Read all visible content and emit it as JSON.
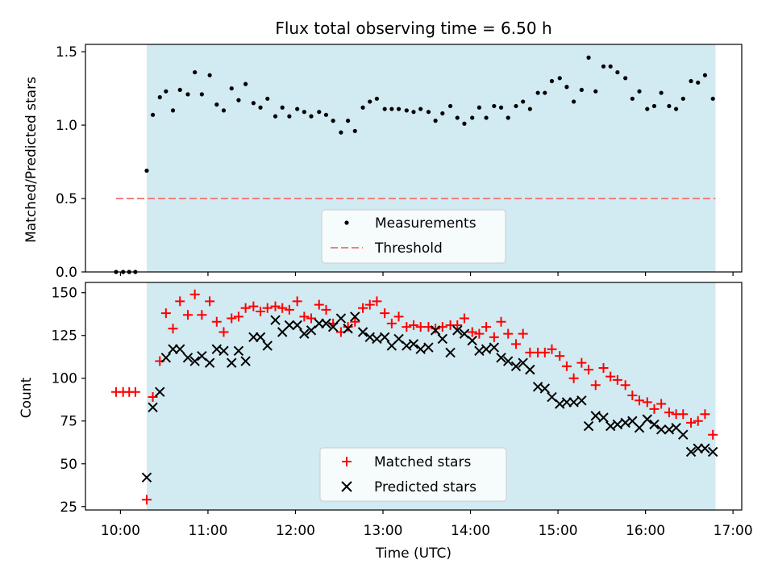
{
  "chart_data": {
    "type": "scatter",
    "title": "Flux total observing time = 6.50 h",
    "x_label": "Time (UTC)",
    "x_range_hours": [
      9.6,
      17.1
    ],
    "x_ticks": [
      {
        "value": 10,
        "label": "10:00"
      },
      {
        "value": 11,
        "label": "11:00"
      },
      {
        "value": 12,
        "label": "12:00"
      },
      {
        "value": 13,
        "label": "13:00"
      },
      {
        "value": 14,
        "label": "14:00"
      },
      {
        "value": 15,
        "label": "15:00"
      },
      {
        "value": 16,
        "label": "16:00"
      },
      {
        "value": 17,
        "label": "17:00"
      }
    ],
    "colors": {
      "observing_span": "#add8e6",
      "measurements": "#000000",
      "threshold": "#f08080",
      "matched": "#ff0000",
      "predicted": "#000000"
    },
    "panels": [
      {
        "id": "ratio",
        "y_label": "Matched/Predicted stars",
        "y_range": [
          0,
          1.55
        ],
        "y_ticks": [
          {
            "value": 0,
            "label": "0.0"
          },
          {
            "value": 0.5,
            "label": "0.5"
          },
          {
            "value": 1,
            "label": "1.0"
          },
          {
            "value": 1.5,
            "label": "1.5"
          }
        ],
        "observing_span_hours": [
          10.3,
          16.8
        ],
        "threshold": {
          "name": "Threshold",
          "value": 0.5,
          "x_range": [
            9.95,
            16.8
          ]
        },
        "legend": {
          "placement": "lower-center",
          "entries": [
            "Measurements",
            "Threshold"
          ]
        },
        "series": [
          {
            "name": "Measurements",
            "marker": "dot",
            "x": [
              9.95,
              10.03,
              10.1,
              10.17,
              10.3,
              10.37,
              10.45,
              10.52,
              10.6,
              10.68,
              10.77,
              10.85,
              10.93,
              11.02,
              11.1,
              11.18,
              11.27,
              11.35,
              11.43,
              11.52,
              11.6,
              11.68,
              11.77,
              11.85,
              11.93,
              12.02,
              12.1,
              12.18,
              12.27,
              12.35,
              12.43,
              12.52,
              12.6,
              12.68,
              12.77,
              12.85,
              12.93,
              13.02,
              13.1,
              13.18,
              13.27,
              13.35,
              13.43,
              13.52,
              13.6,
              13.68,
              13.77,
              13.85,
              13.93,
              14.02,
              14.1,
              14.18,
              14.27,
              14.35,
              14.43,
              14.52,
              14.6,
              14.68,
              14.77,
              14.85,
              14.93,
              15.02,
              15.1,
              15.18,
              15.27,
              15.35,
              15.43,
              15.52,
              15.6,
              15.68,
              15.77,
              15.85,
              15.93,
              16.02,
              16.1,
              16.18,
              16.27,
              16.35,
              16.43,
              16.52,
              16.6,
              16.68,
              16.77
            ],
            "y": [
              0.0,
              0.0,
              0.0,
              0.0,
              0.69,
              1.07,
              1.19,
              1.23,
              1.1,
              1.24,
              1.21,
              1.36,
              1.21,
              1.34,
              1.14,
              1.1,
              1.25,
              1.17,
              1.28,
              1.15,
              1.12,
              1.18,
              1.06,
              1.12,
              1.06,
              1.11,
              1.09,
              1.06,
              1.09,
              1.07,
              1.03,
              0.95,
              1.03,
              0.96,
              1.12,
              1.16,
              1.18,
              1.11,
              1.11,
              1.11,
              1.1,
              1.09,
              1.11,
              1.09,
              1.03,
              1.08,
              1.13,
              1.05,
              1.01,
              1.05,
              1.12,
              1.05,
              1.13,
              1.12,
              1.05,
              1.13,
              1.16,
              1.11,
              1.22,
              1.22,
              1.3,
              1.32,
              1.26,
              1.16,
              1.24,
              1.46,
              1.23,
              1.4,
              1.4,
              1.36,
              1.32,
              1.18,
              1.23,
              1.11,
              1.13,
              1.22,
              1.13,
              1.11,
              1.18,
              1.3,
              1.29,
              1.34,
              1.18
            ]
          }
        ]
      },
      {
        "id": "counts",
        "y_label": "Count",
        "y_range": [
          23,
          156
        ],
        "y_ticks": [
          {
            "value": 25,
            "label": "25"
          },
          {
            "value": 50,
            "label": "50"
          },
          {
            "value": 75,
            "label": "75"
          },
          {
            "value": 100,
            "label": "100"
          },
          {
            "value": 125,
            "label": "125"
          },
          {
            "value": 150,
            "label": "150"
          }
        ],
        "observing_span_hours": [
          10.3,
          16.8
        ],
        "legend": {
          "placement": "lower-center",
          "entries": [
            "Matched stars",
            "Predicted stars"
          ]
        },
        "series": [
          {
            "name": "Matched stars",
            "marker": "plus",
            "x": [
              9.95,
              10.03,
              10.1,
              10.17,
              10.3,
              10.37,
              10.45,
              10.52,
              10.6,
              10.68,
              10.77,
              10.85,
              10.93,
              11.02,
              11.1,
              11.18,
              11.27,
              11.35,
              11.43,
              11.52,
              11.6,
              11.68,
              11.77,
              11.85,
              11.93,
              12.02,
              12.1,
              12.18,
              12.27,
              12.35,
              12.43,
              12.52,
              12.6,
              12.68,
              12.77,
              12.85,
              12.93,
              13.02,
              13.1,
              13.18,
              13.27,
              13.35,
              13.43,
              13.52,
              13.6,
              13.68,
              13.77,
              13.85,
              13.93,
              14.02,
              14.1,
              14.18,
              14.27,
              14.35,
              14.43,
              14.52,
              14.6,
              14.68,
              14.77,
              14.85,
              14.93,
              15.02,
              15.1,
              15.18,
              15.27,
              15.35,
              15.43,
              15.52,
              15.6,
              15.68,
              15.77,
              15.85,
              15.93,
              16.02,
              16.1,
              16.18,
              16.27,
              16.35,
              16.43,
              16.52,
              16.6,
              16.68,
              16.77
            ],
            "y": [
              92,
              92,
              92,
              92,
              29,
              89,
              110,
              138,
              129,
              145,
              137,
              149,
              137,
              145,
              133,
              127,
              135,
              136,
              141,
              142,
              139,
              141,
              142,
              141,
              140,
              145,
              136,
              135,
              143,
              140,
              132,
              127,
              130,
              133,
              141,
              143,
              145,
              138,
              132,
              136,
              130,
              131,
              130,
              130,
              129,
              130,
              131,
              131,
              135,
              127,
              126,
              130,
              124,
              133,
              126,
              120,
              126,
              115,
              115,
              115,
              117,
              113,
              107,
              100,
              109,
              105,
              96,
              106,
              101,
              99,
              96,
              90,
              87,
              86,
              82,
              85,
              80,
              79,
              79,
              74,
              75,
              79,
              67
            ]
          },
          {
            "name": "Predicted stars",
            "marker": "x",
            "x": [
              10.3,
              10.37,
              10.45,
              10.52,
              10.6,
              10.68,
              10.77,
              10.85,
              10.93,
              11.02,
              11.1,
              11.18,
              11.27,
              11.35,
              11.43,
              11.52,
              11.6,
              11.68,
              11.77,
              11.85,
              11.93,
              12.02,
              12.1,
              12.18,
              12.27,
              12.35,
              12.43,
              12.52,
              12.6,
              12.68,
              12.77,
              12.85,
              12.93,
              13.02,
              13.1,
              13.18,
              13.27,
              13.35,
              13.43,
              13.52,
              13.6,
              13.68,
              13.77,
              13.85,
              13.93,
              14.02,
              14.1,
              14.18,
              14.27,
              14.35,
              14.43,
              14.52,
              14.6,
              14.68,
              14.77,
              14.85,
              14.93,
              15.02,
              15.1,
              15.18,
              15.27,
              15.35,
              15.43,
              15.52,
              15.6,
              15.68,
              15.77,
              15.85,
              15.93,
              16.02,
              16.1,
              16.18,
              16.27,
              16.35,
              16.43,
              16.52,
              16.6,
              16.68,
              16.77
            ],
            "y": [
              42,
              83,
              92,
              112,
              117,
              117,
              112,
              110,
              113,
              109,
              117,
              116,
              109,
              116,
              110,
              124,
              124,
              119,
              134,
              127,
              131,
              131,
              126,
              128,
              132,
              132,
              130,
              135,
              129,
              136,
              127,
              124,
              123,
              124,
              119,
              123,
              119,
              120,
              117,
              118,
              128,
              123,
              115,
              128,
              126,
              122,
              116,
              117,
              118,
              112,
              110,
              107,
              109,
              105,
              95,
              94,
              89,
              85,
              86,
              86,
              87,
              72,
              78,
              77,
              72,
              73,
              74,
              75,
              71,
              76,
              73,
              70,
              70,
              71,
              67,
              57,
              59,
              59,
              57
            ]
          }
        ]
      }
    ]
  }
}
